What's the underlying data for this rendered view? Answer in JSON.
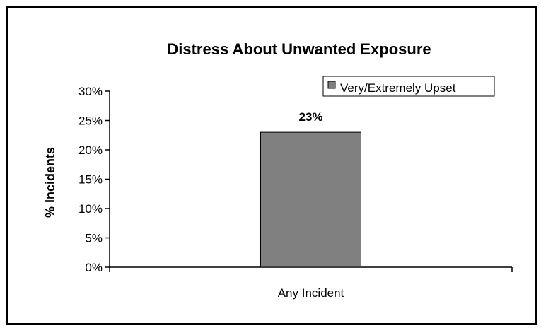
{
  "chart_data": {
    "type": "bar",
    "title": "Distress About Unwanted Exposure",
    "ylabel": "% Incidents",
    "xlabel": "",
    "categories": [
      "Any Incident"
    ],
    "series": [
      {
        "name": "Very/Extremely Upset",
        "values": [
          23
        ],
        "data_labels": [
          "23%"
        ],
        "color": "#808080"
      }
    ],
    "ylim": [
      0,
      30
    ],
    "yticks": [
      0,
      5,
      10,
      15,
      20,
      25,
      30
    ],
    "ytick_labels": [
      "0%",
      "5%",
      "10%",
      "15%",
      "20%",
      "25%",
      "30%"
    ],
    "grid": false,
    "legend_position": "top-right"
  }
}
